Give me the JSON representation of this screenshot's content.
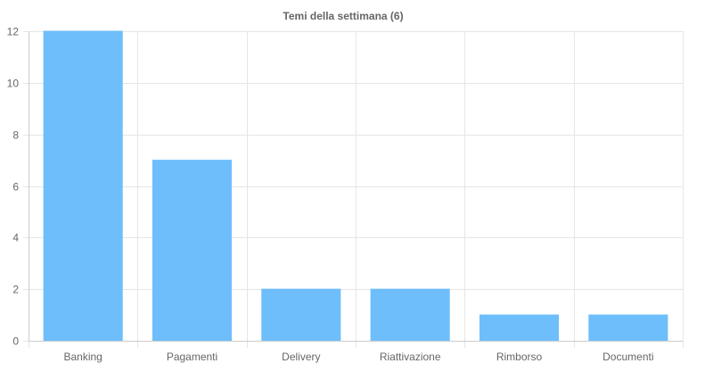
{
  "chart_data": {
    "type": "bar",
    "title": "Temi della settimana (6)",
    "xlabel": "",
    "ylabel": "",
    "categories": [
      "Banking",
      "Pagamenti",
      "Delivery",
      "Riattivazione",
      "Rimborso",
      "Documenti"
    ],
    "values": [
      12,
      7,
      2,
      2,
      1,
      1
    ],
    "ylim": [
      0,
      12
    ],
    "yticks": [
      0,
      2,
      4,
      6,
      8,
      10,
      12
    ],
    "grid": true,
    "legend": "none",
    "colors": {
      "bar": "#6ebefc",
      "grid": "#e6e6e6",
      "axis": "#cccccc",
      "text": "#666666"
    }
  }
}
